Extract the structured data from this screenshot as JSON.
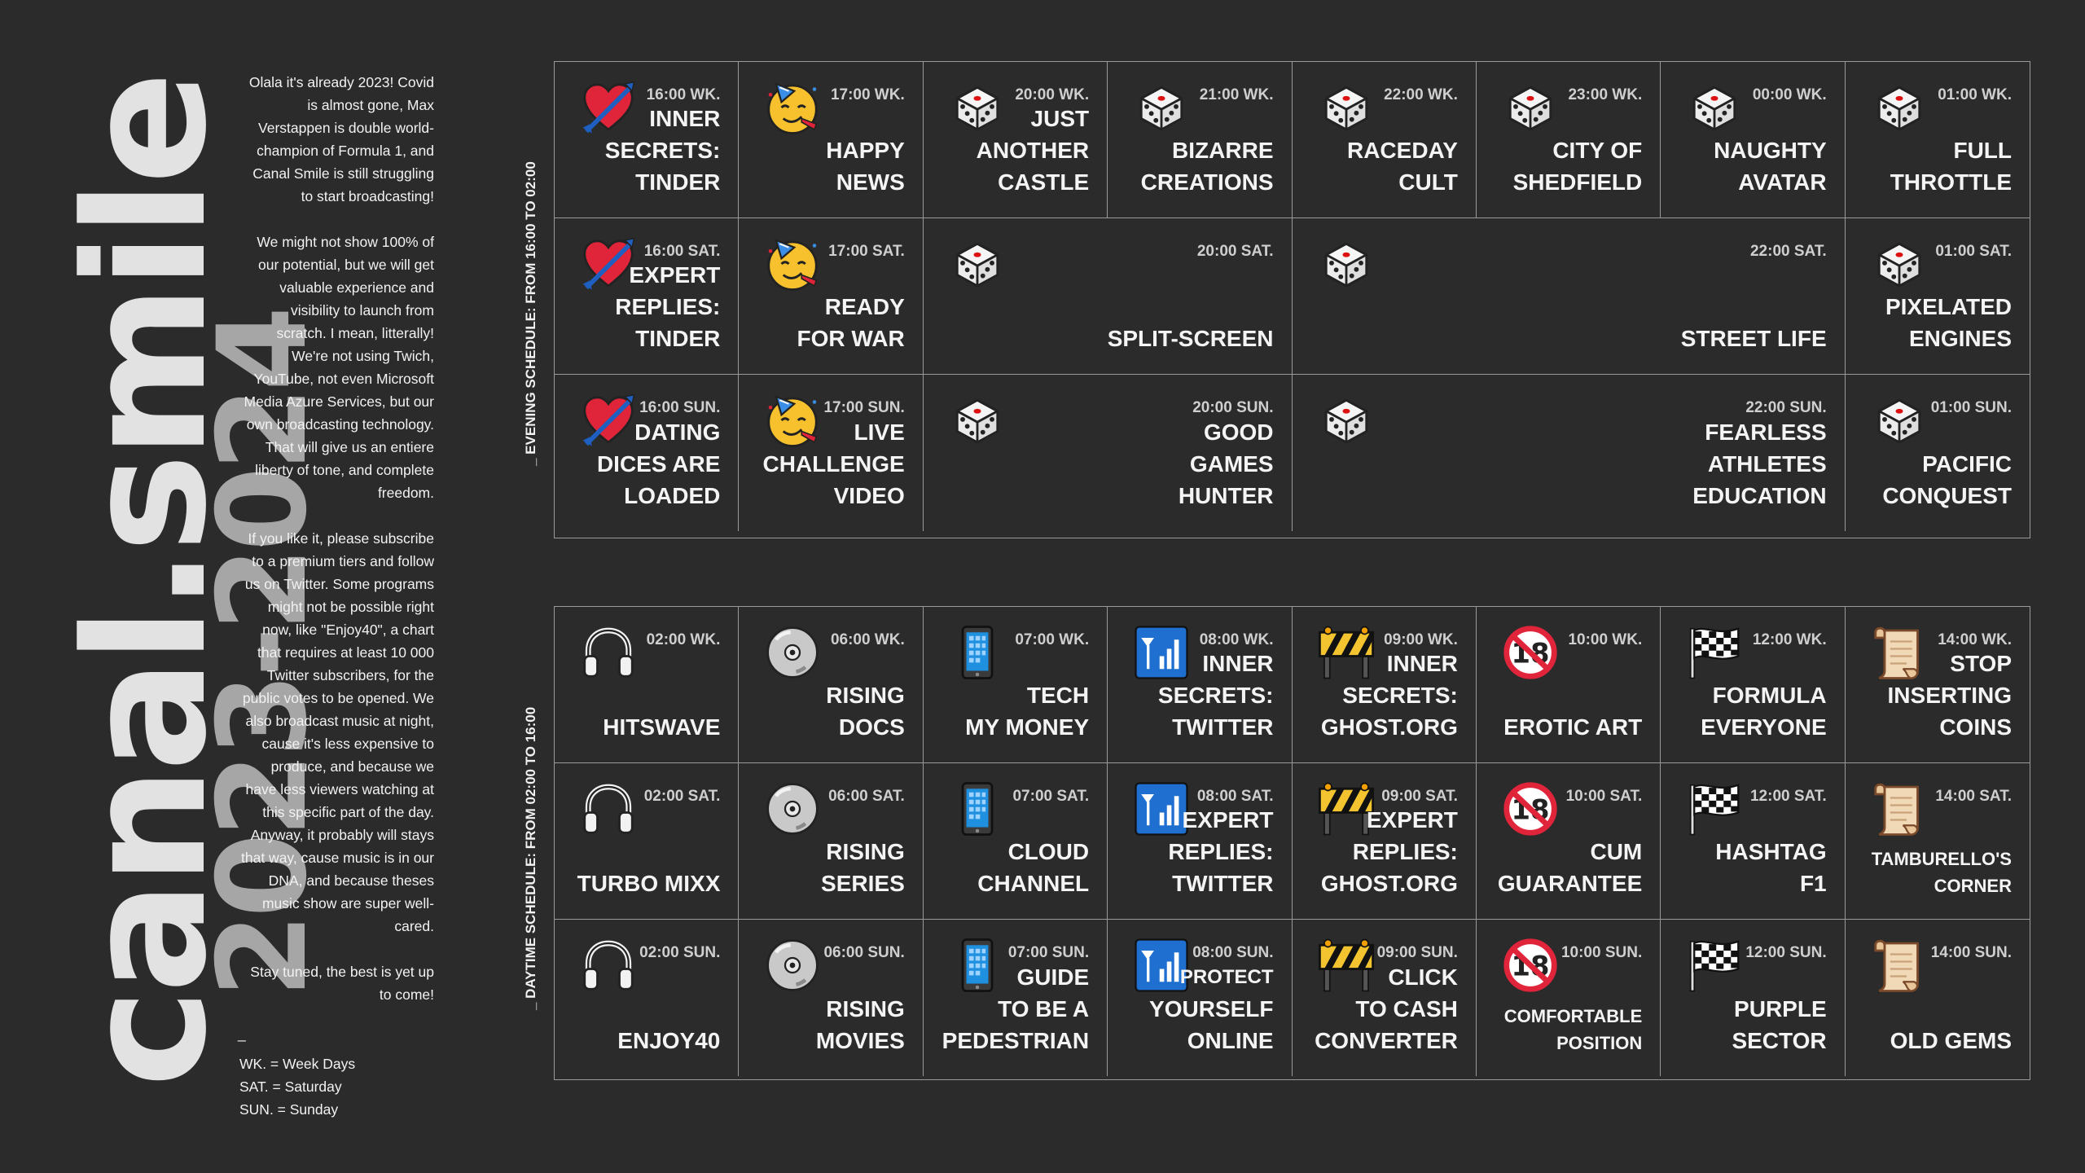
{
  "brand": {
    "name": "canal.smile",
    "years": "2023-2024"
  },
  "intro": {
    "p1": "Olala it's already 2023! Covid is almost gone, Max Verstappen is double world-champion of Formula 1, and Canal Smile is still struggling to start broadcasting!",
    "p2": "We might not show 100% of our potential, but we will get valuable experience and visibility to launch from scratch. I mean, litterally! We're not using Twich, YouTube, not even Microsoft Media Azure Services, but our own broadcasting technology. That will give us an entiere liberty of tone, and complete freedom.",
    "p3": "If you like it, please subscribe to a premium tiers and follow us on Twitter. Some programs might not be possible right now, like \"Enjoy40\", a chart that requires at least 10 000 Twitter subscribers, for the public votes to be opened. We also broadcast music at night, cause it's less expensive to produce, and because we have less viewers watching at this specific part of the day.  Anyway, it probably will stays that way, cause music is in our DNA, and because theses music show are super well-cared.",
    "p4": "Stay tuned, the best is yet up to come!",
    "dash": "_"
  },
  "legend": [
    "WK. = Week Days",
    "SAT. = Saturday",
    "SUN. = Sunday"
  ],
  "evening_label": "_ EVENING SCHEDULE: FROM 16:00 TO 02:00",
  "daytime_label": "_ DAYTIME SCHEDULE: FROM 02:00 TO 16:00",
  "evening": [
    {
      "icon": "heart-arrow-icon",
      "time": "16:00 WK.",
      "title": "INNER\nSECRETS:\nTINDER",
      "col": 1,
      "row": 1,
      "span": 1
    },
    {
      "icon": "party-face-icon",
      "time": "17:00 WK.",
      "title": "HAPPY\nNEWS",
      "col": 2,
      "row": 1,
      "span": 1
    },
    {
      "icon": "dice-icon",
      "time": "20:00 WK.",
      "title": "JUST\nANOTHER\nCASTLE",
      "col": 3,
      "row": 1,
      "span": 1
    },
    {
      "icon": "dice-icon",
      "time": "21:00 WK.",
      "title": "BIZARRE\nCREATIONS",
      "col": 4,
      "row": 1,
      "span": 1
    },
    {
      "icon": "dice-icon",
      "time": "22:00 WK.",
      "title": "RACEDAY\nCULT",
      "col": 5,
      "row": 1,
      "span": 1
    },
    {
      "icon": "dice-icon",
      "time": "23:00 WK.",
      "title": "CITY OF\nSHEDFIELD",
      "col": 6,
      "row": 1,
      "span": 1
    },
    {
      "icon": "dice-icon",
      "time": "00:00 WK.",
      "title": "NAUGHTY\nAVATAR",
      "col": 7,
      "row": 1,
      "span": 1
    },
    {
      "icon": "dice-icon",
      "time": "01:00 WK.",
      "title": "FULL\nTHROTTLE",
      "col": 8,
      "row": 1,
      "span": 1
    },
    {
      "icon": "heart-arrow-icon",
      "time": "16:00 SAT.",
      "title": "EXPERT\nREPLIES:\nTINDER",
      "col": 1,
      "row": 2,
      "span": 1
    },
    {
      "icon": "party-face-icon",
      "time": "17:00 SAT.",
      "title": "READY\nFOR WAR",
      "col": 2,
      "row": 2,
      "span": 1
    },
    {
      "icon": "dice-icon",
      "time": "20:00 SAT.",
      "title": "SPLIT-SCREEN",
      "col": 3,
      "row": 2,
      "span": 2
    },
    {
      "icon": "dice-icon",
      "time": "22:00 SAT.",
      "title": "STREET LIFE",
      "col": 5,
      "row": 2,
      "span": 3
    },
    {
      "icon": "dice-icon",
      "time": "01:00 SAT.",
      "title": "PIXELATED\nENGINES",
      "col": 8,
      "row": 2,
      "span": 1
    },
    {
      "icon": "heart-arrow-icon",
      "time": "16:00 SUN.",
      "title": "DATING\nDICES ARE\nLOADED",
      "col": 1,
      "row": 3,
      "span": 1
    },
    {
      "icon": "party-face-icon",
      "time": "17:00 SUN.",
      "title": "LIVE\nCHALLENGE\nVIDEO",
      "col": 2,
      "row": 3,
      "span": 1
    },
    {
      "icon": "dice-icon",
      "time": "20:00 SUN.",
      "title": "GOOD\nGAMES\nHUNTER",
      "col": 3,
      "row": 3,
      "span": 2
    },
    {
      "icon": "dice-icon",
      "time": "22:00 SUN.",
      "title": "FEARLESS\nATHLETES\nEDUCATION",
      "col": 5,
      "row": 3,
      "span": 3
    },
    {
      "icon": "dice-icon",
      "time": "01:00 SUN.",
      "title": "PACIFIC\nCONQUEST",
      "col": 8,
      "row": 3,
      "span": 1
    }
  ],
  "daytime": [
    {
      "icon": "headphones-icon",
      "time": "02:00 WK.",
      "title": "HITSWAVE"
    },
    {
      "icon": "cd-icon",
      "time": "06:00 WK.",
      "title": "RISING\nDOCS"
    },
    {
      "icon": "phone-icon",
      "time": "07:00 WK.",
      "title": "TECH\nMY MONEY"
    },
    {
      "icon": "signal-icon",
      "time": "08:00 WK.",
      "title": "INNER\nSECRETS:\nTWITTER"
    },
    {
      "icon": "barrier-icon",
      "time": "09:00 WK.",
      "title": "INNER\nSECRETS:\nGHOST.ORG"
    },
    {
      "icon": "no-under-18-icon",
      "time": "10:00 WK.",
      "title": "EROTIC ART"
    },
    {
      "icon": "checkered-flag-icon",
      "time": "12:00 WK.",
      "title": "FORMULA\nEVERYONE"
    },
    {
      "icon": "scroll-icon",
      "time": "14:00 WK.",
      "title": "STOP\nINSERTING\nCOINS"
    },
    {
      "icon": "headphones-icon",
      "time": "02:00 SAT.",
      "title": "TURBO MIXX"
    },
    {
      "icon": "cd-icon",
      "time": "06:00 SAT.",
      "title": "RISING\nSERIES"
    },
    {
      "icon": "phone-icon",
      "time": "07:00 SAT.",
      "title": "CLOUD\nCHANNEL"
    },
    {
      "icon": "signal-icon",
      "time": "08:00 SAT.",
      "title": "EXPERT\nREPLIES:\nTWITTER"
    },
    {
      "icon": "barrier-icon",
      "time": "09:00 SAT.",
      "title": "EXPERT\nREPLIES:\nGHOST.ORG"
    },
    {
      "icon": "no-under-18-icon",
      "time": "10:00 SAT.",
      "title": "CUM\nGUARANTEE"
    },
    {
      "icon": "checkered-flag-icon",
      "time": "12:00 SAT.",
      "title": "HASHTAG\nF1"
    },
    {
      "icon": "scroll-icon",
      "time": "14:00 SAT.",
      "title": "TAMBURELLO'S\nCORNER",
      "small": true
    },
    {
      "icon": "headphones-icon",
      "time": "02:00 SUN.",
      "title": "ENJOY40"
    },
    {
      "icon": "cd-icon",
      "time": "06:00 SUN.",
      "title": "RISING\nMOVIES"
    },
    {
      "icon": "phone-icon",
      "time": "07:00 SUN.",
      "title": "GUIDE\nTO BE A\nPEDESTRIAN"
    },
    {
      "icon": "signal-icon",
      "time": "08:00 SUN.",
      "title": "PROTECT\nYOURSELF\nONLINE",
      "firstSmall": true
    },
    {
      "icon": "barrier-icon",
      "time": "09:00 SUN.",
      "title": "CLICK\nTO CASH\nCONVERTER"
    },
    {
      "icon": "no-under-18-icon",
      "time": "10:00 SUN.",
      "title": "COMFORTABLE\nPOSITION",
      "small": true
    },
    {
      "icon": "checkered-flag-icon",
      "time": "12:00 SUN.",
      "title": "PURPLE\nSECTOR"
    },
    {
      "icon": "scroll-icon",
      "time": "14:00 SUN.",
      "title": "OLD GEMS"
    }
  ]
}
